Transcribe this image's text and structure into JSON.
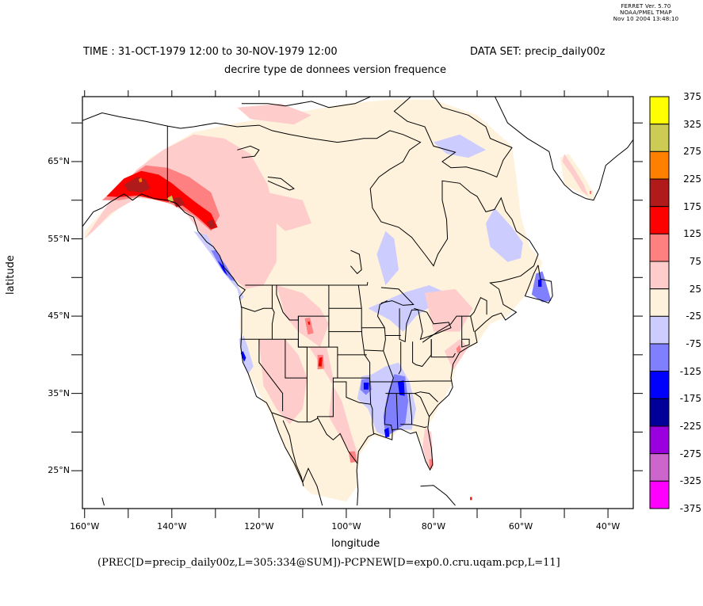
{
  "stamp": {
    "line1": "FERRET Ver. 5.70",
    "line2": "NOAA/PMEL TMAP",
    "line3": "Nov 10 2004 13:48:10"
  },
  "header": {
    "time": "TIME : 31-OCT-1979 12:00 to 30-NOV-1979 12:00",
    "dataset": "DATA SET: precip_daily00z",
    "subtitle": "decrire type de donnees version frequence"
  },
  "footer": {
    "expression": "(PREC[D=precip_daily00z,L=305:334@SUM])-PCPNEW[D=exp0.0.cru.uqam.pcp,L=11]"
  },
  "chart_data": {
    "type": "heatmap",
    "title": "TIME : 31-OCT-1979 12:00 to 30-NOV-1979 12:00",
    "subtitle": "decrire type de donnees version frequence",
    "dataset": "precip_daily00z",
    "xlabel": "longitude",
    "ylabel": "latitude",
    "xlim": [
      -160.5,
      -34.2
    ],
    "ylim": [
      20.1,
      73.4
    ],
    "xticks": [
      {
        "value": -160,
        "label": "160°W"
      },
      {
        "value": -150,
        "label": ""
      },
      {
        "value": -140,
        "label": "140°W"
      },
      {
        "value": -130,
        "label": ""
      },
      {
        "value": -120,
        "label": "120°W"
      },
      {
        "value": -110,
        "label": ""
      },
      {
        "value": -100,
        "label": "100°W"
      },
      {
        "value": -90,
        "label": ""
      },
      {
        "value": -80,
        "label": "80°W"
      },
      {
        "value": -70,
        "label": ""
      },
      {
        "value": -60,
        "label": "60°W"
      },
      {
        "value": -50,
        "label": ""
      },
      {
        "value": -40,
        "label": "40°W"
      }
    ],
    "yticks": [
      {
        "value": 70,
        "label": ""
      },
      {
        "value": 65,
        "label": "65°N"
      },
      {
        "value": 60,
        "label": ""
      },
      {
        "value": 55,
        "label": "55°N"
      },
      {
        "value": 50,
        "label": ""
      },
      {
        "value": 45,
        "label": "45°N"
      },
      {
        "value": 40,
        "label": ""
      },
      {
        "value": 35,
        "label": "35°N"
      },
      {
        "value": 30,
        "label": ""
      },
      {
        "value": 25,
        "label": "25°N"
      }
    ],
    "colorbar": {
      "levels": [
        -375,
        -325,
        -275,
        -225,
        -175,
        -125,
        -75,
        -25,
        25,
        75,
        125,
        175,
        225,
        275,
        325,
        375
      ],
      "labels": [
        "375",
        "325",
        "275",
        "225",
        "175",
        "125",
        "75",
        "25",
        "-25",
        "-75",
        "-125",
        "-175",
        "-225",
        "-275",
        "-325",
        "-375"
      ],
      "colors_top_to_bottom": [
        "#ffff00",
        "#cccc55",
        "#ff8000",
        "#b01a1a",
        "#ff0000",
        "#ff8080",
        "#ffcccc",
        "#fff2dc",
        "#ccccff",
        "#8080ff",
        "#0000ff",
        "#000099",
        "#9900dd",
        "#cc66cc",
        "#ff00ff"
      ]
    },
    "regions": [
      {
        "name": "Alaska / Yukon coastal arc",
        "range": "75 to 225",
        "peak": "275 to 325 (isolated)"
      },
      {
        "name": "Pacific Northwest coast",
        "range": "-175 to -25"
      },
      {
        "name": "Northern California coast",
        "range": "-175 to -25"
      },
      {
        "name": "Colorado Rockies",
        "range": "125 to 225"
      },
      {
        "name": "Wyoming",
        "range": "75 to 175"
      },
      {
        "name": "Lower Mississippi / Tennessee Valley",
        "range": "-175 to -25"
      },
      {
        "name": "Oklahoma / Arkansas",
        "range": "-175 to -25"
      },
      {
        "name": "Newfoundland",
        "range": "-175 to -25"
      },
      {
        "name": "Southern Greenland",
        "range": "25 to 125"
      },
      {
        "name": "Most of Canada and US interior",
        "range": "-25 to 25"
      }
    ]
  }
}
